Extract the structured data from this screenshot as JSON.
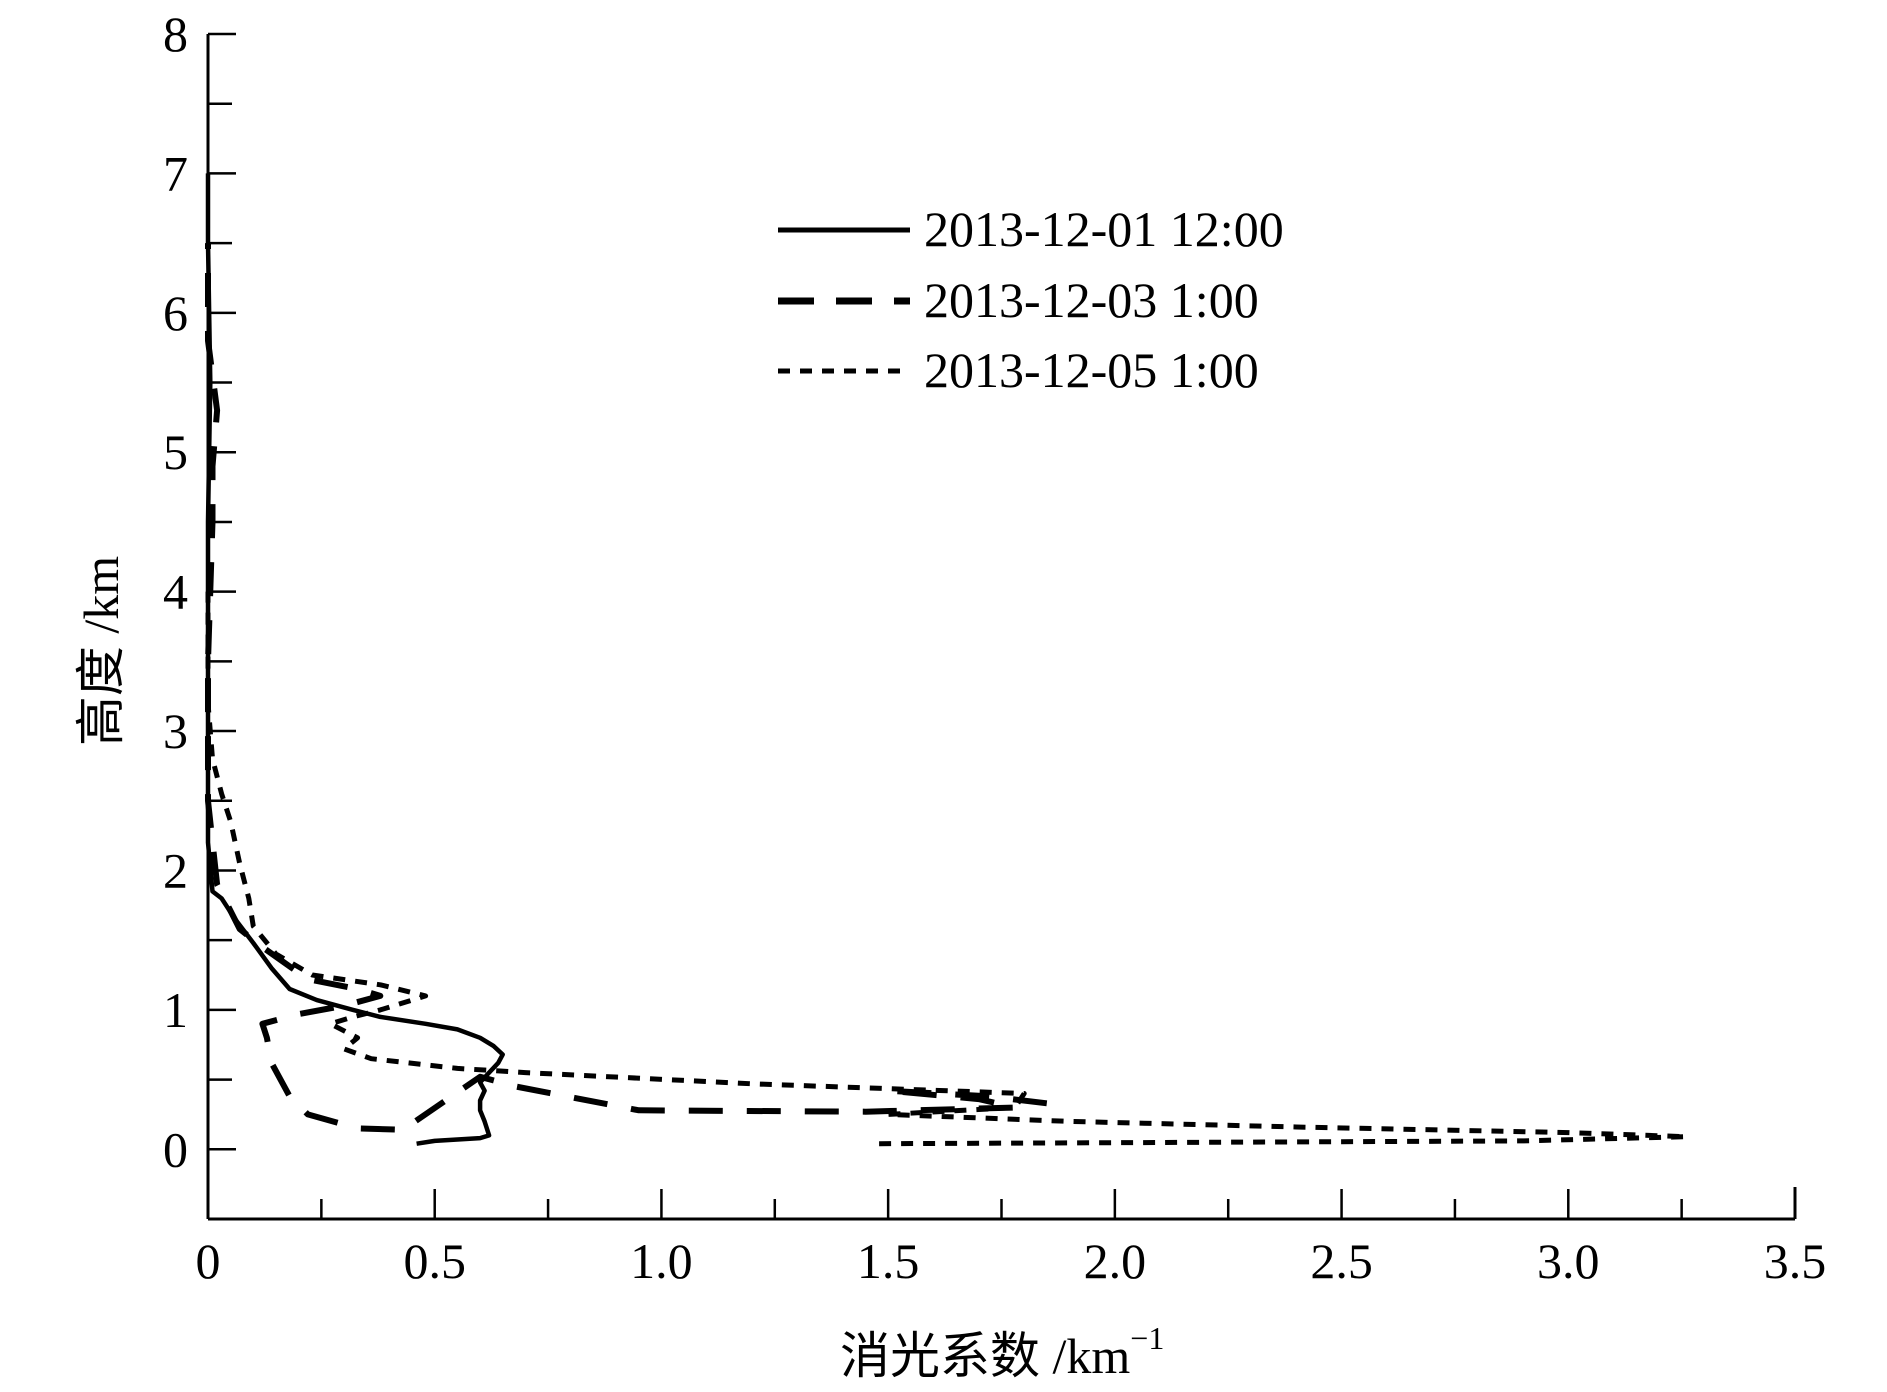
{
  "chart_data": {
    "type": "line",
    "title": "",
    "xlabel": "消光系数 /km",
    "xlabel_sup": "−1",
    "ylabel": "高度 /km",
    "xlim": [
      0,
      3.5
    ],
    "ylim": [
      -0.5,
      8
    ],
    "x_ticks": [
      0,
      0.5,
      1.0,
      1.5,
      2.0,
      2.5,
      3.0,
      3.5
    ],
    "x_tick_labels": [
      "0",
      "0.5",
      "1.0",
      "1.5",
      "2.0",
      "2.5",
      "3.0",
      "3.5"
    ],
    "y_ticks": [
      0,
      1,
      2,
      3,
      4,
      5,
      6,
      7,
      8
    ],
    "y_tick_labels": [
      "0",
      "1",
      "2",
      "3",
      "4",
      "5",
      "6",
      "7",
      "8"
    ],
    "grid": false,
    "legend_position": "top-center",
    "series": [
      {
        "name": "2013-12-01 12:00",
        "style": "solid",
        "points": [
          [
            0.46,
            0.04
          ],
          [
            0.5,
            0.06
          ],
          [
            0.55,
            0.07
          ],
          [
            0.6,
            0.08
          ],
          [
            0.62,
            0.1
          ],
          [
            0.61,
            0.2
          ],
          [
            0.6,
            0.28
          ],
          [
            0.6,
            0.35
          ],
          [
            0.61,
            0.42
          ],
          [
            0.6,
            0.48
          ],
          [
            0.62,
            0.55
          ],
          [
            0.64,
            0.62
          ],
          [
            0.65,
            0.68
          ],
          [
            0.63,
            0.74
          ],
          [
            0.6,
            0.8
          ],
          [
            0.55,
            0.86
          ],
          [
            0.48,
            0.9
          ],
          [
            0.38,
            0.95
          ],
          [
            0.32,
            1.0
          ],
          [
            0.24,
            1.07
          ],
          [
            0.18,
            1.15
          ],
          [
            0.14,
            1.3
          ],
          [
            0.1,
            1.48
          ],
          [
            0.06,
            1.65
          ],
          [
            0.03,
            1.8
          ],
          [
            0.01,
            1.85
          ],
          [
            0.0,
            2.2
          ],
          [
            0.0,
            4.5
          ],
          [
            0.005,
            5.5
          ],
          [
            0.0,
            6.5
          ],
          [
            0.0,
            7.0
          ]
        ]
      },
      {
        "name": "2013-12-03 1:00",
        "style": "dashed",
        "points": [
          [
            1.85,
            0.33
          ],
          [
            1.72,
            0.38
          ],
          [
            1.5,
            0.42
          ],
          [
            1.7,
            0.36
          ],
          [
            1.78,
            0.3
          ],
          [
            1.45,
            0.27
          ],
          [
            0.95,
            0.28
          ],
          [
            0.68,
            0.45
          ],
          [
            0.6,
            0.52
          ],
          [
            0.43,
            0.14
          ],
          [
            0.33,
            0.15
          ],
          [
            0.22,
            0.25
          ],
          [
            0.18,
            0.38
          ],
          [
            0.14,
            0.62
          ],
          [
            0.13,
            0.8
          ],
          [
            0.12,
            0.9
          ],
          [
            0.2,
            0.97
          ],
          [
            0.3,
            1.03
          ],
          [
            0.38,
            1.1
          ],
          [
            0.33,
            1.15
          ],
          [
            0.22,
            1.22
          ],
          [
            0.12,
            1.45
          ],
          [
            0.07,
            1.58
          ],
          [
            0.02,
            1.9
          ],
          [
            0.0,
            2.5
          ],
          [
            0.0,
            3.5
          ],
          [
            0.01,
            4.5
          ],
          [
            0.01,
            4.9
          ],
          [
            0.02,
            5.3
          ],
          [
            0.0,
            5.8
          ],
          [
            0.0,
            6.5
          ]
        ]
      },
      {
        "name": "2013-12-05 1:00",
        "style": "dotted",
        "points": [
          [
            1.48,
            0.04
          ],
          [
            2.2,
            0.05
          ],
          [
            2.9,
            0.06
          ],
          [
            3.26,
            0.09
          ],
          [
            3.0,
            0.12
          ],
          [
            2.4,
            0.16
          ],
          [
            1.9,
            0.2
          ],
          [
            1.5,
            0.25
          ],
          [
            1.78,
            0.3
          ],
          [
            1.8,
            0.4
          ],
          [
            1.2,
            0.47
          ],
          [
            0.7,
            0.55
          ],
          [
            0.55,
            0.58
          ],
          [
            0.36,
            0.65
          ],
          [
            0.3,
            0.72
          ],
          [
            0.33,
            0.8
          ],
          [
            0.3,
            0.85
          ],
          [
            0.27,
            0.9
          ],
          [
            0.32,
            0.95
          ],
          [
            0.38,
            1.0
          ],
          [
            0.48,
            1.1
          ],
          [
            0.38,
            1.18
          ],
          [
            0.23,
            1.25
          ],
          [
            0.15,
            1.4
          ],
          [
            0.1,
            1.6
          ],
          [
            0.09,
            1.8
          ],
          [
            0.07,
            2.05
          ],
          [
            0.05,
            2.35
          ],
          [
            0.03,
            2.55
          ],
          [
            0.01,
            2.8
          ],
          [
            0.0,
            3.2
          ],
          [
            0.0,
            4.0
          ]
        ]
      }
    ]
  },
  "legend": {
    "entries": [
      {
        "label": "2013-12-01 12:00"
      },
      {
        "label": "2013-12-03 1:00"
      },
      {
        "label": "2013-12-05 1:00"
      }
    ]
  }
}
